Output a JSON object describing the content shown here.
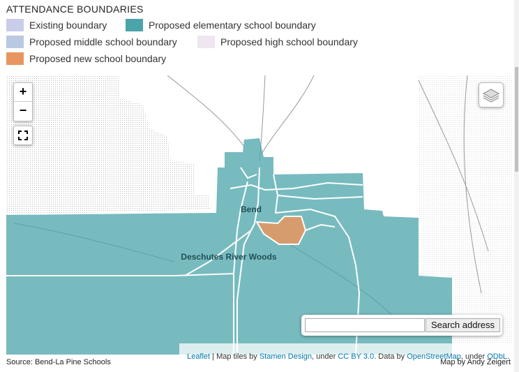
{
  "header": {
    "title": "ATTENDANCE BOUNDARIES"
  },
  "legend": [
    {
      "label": "Existing boundary",
      "color": "#c9cdea"
    },
    {
      "label": "Proposed elementary school boundary",
      "color": "#4aa4a9"
    },
    {
      "label": "Proposed middle school boundary",
      "color": "#b9c9e2"
    },
    {
      "label": "Proposed high school boundary",
      "color": "#efe6f2"
    },
    {
      "label": "Proposed new school boundary",
      "color": "#e8965f"
    }
  ],
  "map": {
    "zoom_in": "+",
    "zoom_out": "−",
    "labels": [
      "Bend",
      "Deschutes River Woods"
    ],
    "search_button": "Search address",
    "attribution": [
      "Leaflet",
      " | Map tiles by ",
      "Stamen Design",
      ", under ",
      "CC BY 3.0",
      ". Data by ",
      "OpenStreetMap",
      ", under ",
      "ODbL",
      "."
    ]
  },
  "footer": {
    "source": "Source: Bend-La Pine Schools",
    "credit": "Map by Andy Zeigert"
  }
}
